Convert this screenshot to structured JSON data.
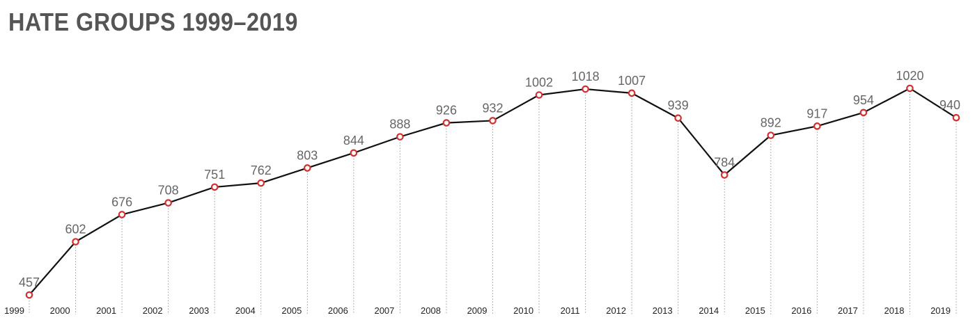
{
  "title": "HATE GROUPS 1999–2019",
  "chart_data": {
    "type": "line",
    "title": "HATE GROUPS 1999–2019",
    "xlabel": "",
    "ylabel": "",
    "categories": [
      "1999",
      "2000",
      "2001",
      "2002",
      "2003",
      "2004",
      "2005",
      "2006",
      "2007",
      "2008",
      "2009",
      "2010",
      "2011",
      "2012",
      "2013",
      "2014",
      "2015",
      "2016",
      "2017",
      "2018",
      "2019"
    ],
    "values": [
      457,
      602,
      676,
      708,
      751,
      762,
      803,
      844,
      888,
      926,
      932,
      1002,
      1018,
      1007,
      939,
      784,
      892,
      917,
      954,
      1020,
      940
    ],
    "grid": false,
    "drop_lines": true,
    "line_color": "#111111",
    "marker_color": "#d32f2f",
    "marker_fill": "#ffffff"
  }
}
